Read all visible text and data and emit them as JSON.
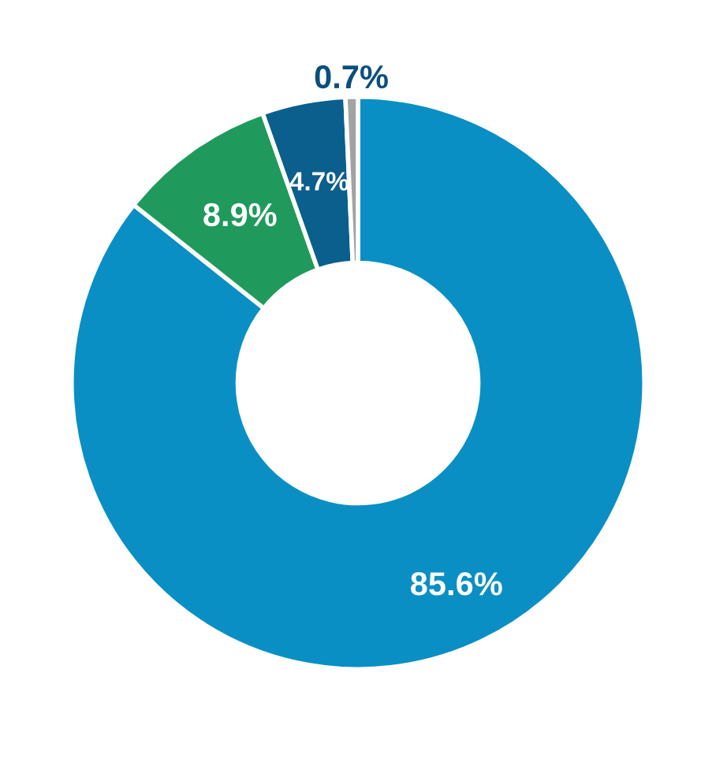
{
  "chart_data": {
    "type": "donut",
    "categories": [
      null,
      null,
      null,
      null
    ],
    "values": [
      85.6,
      8.9,
      4.7,
      0.7
    ],
    "colors": [
      "#0a8fc4",
      "#1f9a5c",
      "#0b5f8c",
      "#a3a3a3"
    ],
    "value_labels": [
      "85.6%",
      "8.9%",
      "4.7%",
      "0.7%"
    ]
  }
}
